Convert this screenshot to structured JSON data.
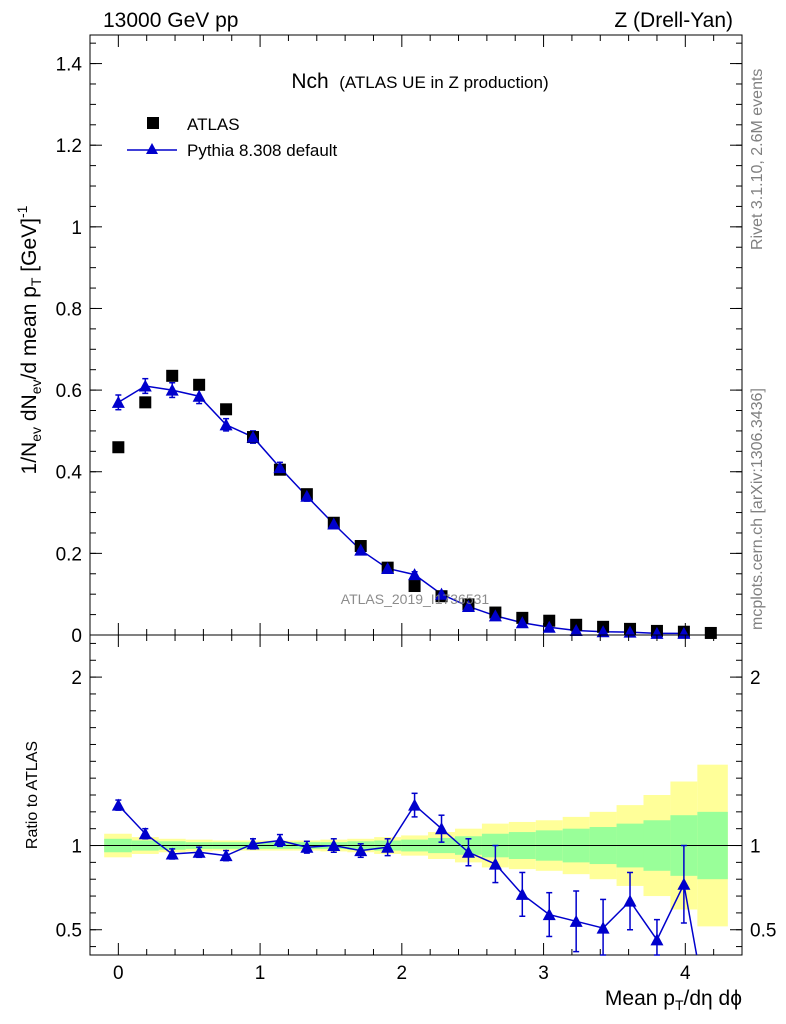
{
  "header": {
    "left": "13000 GeV pp",
    "right": "Z (Drell-Yan)"
  },
  "side_text": {
    "rivet": "Rivet 3.1.10,  2.6M events",
    "mcplots": "mcplots.cern.ch [arXiv:1306.3436]"
  },
  "watermark": "ATLAS_2019_I1736531",
  "chart_data": [
    {
      "type": "scatter",
      "panel": "main",
      "title_main": "Nch",
      "title_sub": "(ATLAS UE in Z production)",
      "ylabel": "1/N_ev dN_ev/d mean p_T [GeV]^-1",
      "xlim": [
        -0.2,
        4.4
      ],
      "ylim": [
        0,
        1.47
      ],
      "yticks": [
        0,
        0.2,
        0.4,
        0.6,
        0.8,
        1,
        1.2,
        1.4
      ],
      "ytick_labels": [
        "0",
        "0.2",
        "0.4",
        "0.6",
        "0.8",
        "1",
        "1.2",
        "1.4"
      ],
      "legend_placement": "top-left",
      "series": [
        {
          "name": "ATLAS",
          "marker": "square",
          "color": "#000000",
          "x": [
            0,
            0.19,
            0.38,
            0.57,
            0.76,
            0.95,
            1.14,
            1.33,
            1.52,
            1.71,
            1.9,
            2.09,
            2.28,
            2.47,
            2.66,
            2.85,
            3.04,
            3.23,
            3.42,
            3.61,
            3.8,
            3.99,
            4.18
          ],
          "y": [
            0.46,
            0.57,
            0.635,
            0.613,
            0.553,
            0.485,
            0.405,
            0.345,
            0.275,
            0.218,
            0.165,
            0.12,
            0.095,
            0.075,
            0.055,
            0.042,
            0.035,
            0.025,
            0.02,
            0.015,
            0.01,
            0.008,
            0.005
          ]
        },
        {
          "name": "Pythia 8.308 default",
          "marker": "triangle",
          "color": "#0000cc",
          "x": [
            0,
            0.19,
            0.38,
            0.57,
            0.76,
            0.95,
            1.14,
            1.33,
            1.52,
            1.71,
            1.9,
            2.09,
            2.28,
            2.47,
            2.66,
            2.85,
            3.04,
            3.23,
            3.42,
            3.61,
            3.8,
            3.99
          ],
          "y": [
            0.57,
            0.61,
            0.6,
            0.585,
            0.515,
            0.485,
            0.41,
            0.34,
            0.272,
            0.208,
            0.163,
            0.148,
            0.1,
            0.07,
            0.047,
            0.03,
            0.019,
            0.011,
            0.008,
            0.007,
            0.004,
            0.004
          ],
          "err": [
            0.018,
            0.018,
            0.018,
            0.018,
            0.015,
            0.015,
            0.013,
            0.012,
            0.01,
            0.008,
            0.007,
            0.007,
            0.006,
            0.005,
            0.004,
            0.003,
            0.003,
            0.002,
            0.002,
            0.002,
            0.002,
            0.002
          ]
        }
      ]
    },
    {
      "type": "scatter",
      "panel": "ratio",
      "ylabel": "Ratio to ATLAS",
      "xlabel": "Mean p_T/dη dϕ",
      "xlim": [
        -0.2,
        4.4
      ],
      "ylim": [
        0.35,
        2.25
      ],
      "xticks": [
        0,
        1,
        2,
        3,
        4
      ],
      "xtick_labels": [
        "0",
        "1",
        "2",
        "3",
        "4"
      ],
      "yticks": [
        0.5,
        1,
        2
      ],
      "ytick_labels": [
        "0.5",
        "1",
        "2"
      ],
      "bands": {
        "edges": [
          -0.1,
          0.095,
          0.285,
          0.475,
          0.665,
          0.855,
          1.045,
          1.235,
          1.425,
          1.615,
          1.805,
          1.995,
          2.185,
          2.375,
          2.565,
          2.755,
          2.945,
          3.135,
          3.325,
          3.515,
          3.705,
          3.895,
          4.085,
          4.3
        ],
        "yellow_lo": [
          0.93,
          0.95,
          0.96,
          0.965,
          0.97,
          0.97,
          0.97,
          0.97,
          0.965,
          0.96,
          0.95,
          0.94,
          0.92,
          0.9,
          0.87,
          0.86,
          0.85,
          0.83,
          0.8,
          0.76,
          0.7,
          0.62,
          0.52
        ],
        "yellow_hi": [
          1.07,
          1.05,
          1.04,
          1.035,
          1.03,
          1.03,
          1.03,
          1.03,
          1.035,
          1.04,
          1.05,
          1.06,
          1.08,
          1.1,
          1.13,
          1.14,
          1.15,
          1.17,
          1.2,
          1.24,
          1.3,
          1.38,
          1.48
        ],
        "green_lo": [
          0.96,
          0.97,
          0.975,
          0.98,
          0.98,
          0.98,
          0.98,
          0.98,
          0.98,
          0.975,
          0.97,
          0.965,
          0.955,
          0.945,
          0.93,
          0.92,
          0.91,
          0.9,
          0.89,
          0.87,
          0.85,
          0.82,
          0.8
        ],
        "green_hi": [
          1.04,
          1.03,
          1.025,
          1.02,
          1.02,
          1.02,
          1.02,
          1.02,
          1.02,
          1.025,
          1.03,
          1.035,
          1.045,
          1.055,
          1.07,
          1.08,
          1.09,
          1.1,
          1.11,
          1.13,
          1.15,
          1.18,
          1.2
        ]
      },
      "series": [
        {
          "name": "Pythia 8.308 default",
          "marker": "triangle",
          "color": "#0000cc",
          "x": [
            0,
            0.19,
            0.38,
            0.57,
            0.76,
            0.95,
            1.14,
            1.33,
            1.52,
            1.71,
            1.9,
            2.09,
            2.28,
            2.47,
            2.66,
            2.85,
            3.04,
            3.23,
            3.42,
            3.61,
            3.8,
            3.99
          ],
          "y": [
            1.24,
            1.07,
            0.95,
            0.96,
            0.94,
            1.01,
            1.03,
            0.99,
            1.0,
            0.97,
            0.99,
            1.24,
            1.1,
            0.96,
            0.89,
            0.71,
            0.59,
            0.55,
            0.51,
            0.67,
            0.44,
            0.77
          ],
          "err": [
            0.03,
            0.03,
            0.03,
            0.03,
            0.03,
            0.03,
            0.035,
            0.035,
            0.04,
            0.04,
            0.05,
            0.07,
            0.08,
            0.08,
            0.11,
            0.13,
            0.13,
            0.18,
            0.17,
            0.17,
            0.12,
            0.23
          ]
        }
      ]
    }
  ]
}
